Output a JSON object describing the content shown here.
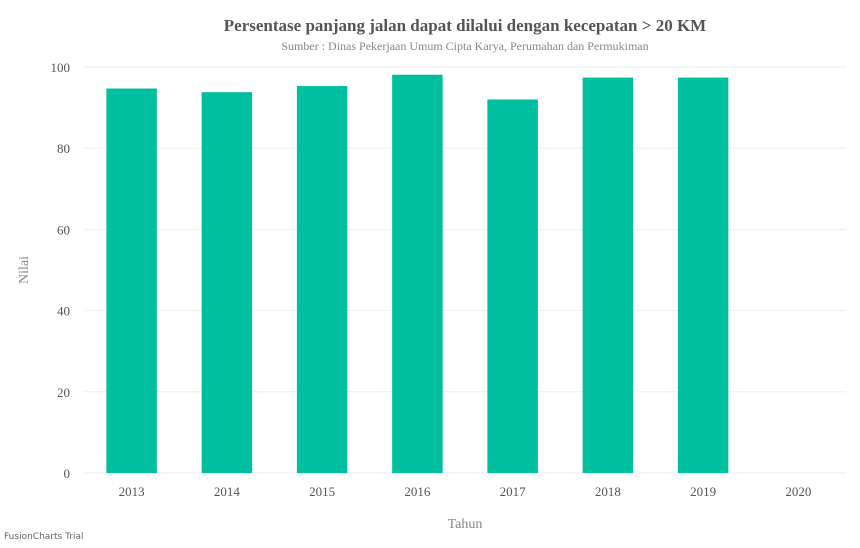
{
  "chart_data": {
    "type": "bar",
    "title": "Persentase panjang jalan dapat dilalui dengan kecepatan > 20 KM",
    "subtitle": "Sumber : Dinas Pekerjaan Umum Cipta Karya, Perumahan dan Permukiman",
    "xlabel": "Tahun",
    "ylabel": "Nilai",
    "categories": [
      "2013",
      "2014",
      "2015",
      "2016",
      "2017",
      "2018",
      "2019",
      "2020"
    ],
    "values": [
      94.7,
      93.8,
      95.3,
      98.1,
      92.0,
      97.4,
      97.4,
      null
    ],
    "ylim": [
      0,
      100
    ],
    "yticks": [
      "0",
      "20",
      "40",
      "60",
      "80",
      "100"
    ],
    "grid": true,
    "legend": "none",
    "bar_color": "#00bf9f"
  },
  "watermark": "FusionCharts Trial"
}
